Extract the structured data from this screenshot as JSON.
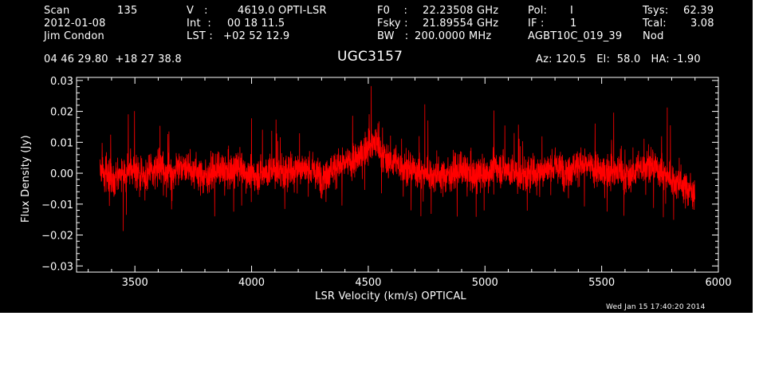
{
  "header": {
    "col1": {
      "scan_label": "Scan",
      "scan_value": "135",
      "date": "2012-01-08",
      "observer": "Jim Condon"
    },
    "col2": {
      "v_label": "V   :",
      "v_value": "4619.0 OPTI-LSR",
      "int_label": "Int  :",
      "int_value": "00 18 11.5",
      "lst_label": "LST :",
      "lst_value": "+02 52 12.9"
    },
    "col3": {
      "f0_label": "F0    :",
      "f0_value": "22.23508 GHz",
      "fsky_label": "Fsky :",
      "fsky_value": "21.89554 GHz",
      "bw_label": "BW   :",
      "bw_value": "200.0000 MHz"
    },
    "col4": {
      "pol_label": "Pol:",
      "pol_value": "I",
      "if_label": "IF :",
      "if_value": "1",
      "project": "AGBT10C_019_39"
    },
    "col5": {
      "tsys_label": "Tsys:",
      "tsys_value": "62.39",
      "tcal_label": "Tcal:",
      "tcal_value": "3.08",
      "mode": "Nod"
    },
    "coords": "04 46 29.80  +18 27 38.8",
    "source": "UGC3157",
    "pointing": "Az: 120.5   El:  58.0   HA: -1.90",
    "timestamp": "Wed Jan 15 17:40:20 2014"
  },
  "colors": {
    "background": "#000000",
    "axes": "#ffffff",
    "trace": "#ff0000"
  },
  "chart_data": {
    "type": "line",
    "xlabel": "LSR Velocity (km/s) OPTICAL",
    "ylabel": "Flux Density (Jy)",
    "xlim": [
      3250,
      6000
    ],
    "ylim": [
      -0.032,
      0.031
    ],
    "xticks": [
      3500,
      4000,
      4500,
      5000,
      5500,
      6000
    ],
    "yticks": [
      -0.03,
      -0.02,
      -0.01,
      0.0,
      0.01,
      0.02,
      0.03
    ],
    "ytick_labels": [
      "−0.03",
      "−0.02",
      "−0.01",
      "0.00",
      "0.01",
      "0.02",
      "0.03"
    ],
    "grid": false,
    "series": [
      {
        "style": "noisy spectrum trace",
        "x": [
          3350,
          3400,
          3450,
          3500,
          3550,
          3600,
          3650,
          3700,
          3750,
          3800,
          3850,
          3900,
          3950,
          4000,
          4050,
          4100,
          4150,
          4200,
          4250,
          4300,
          4350,
          4400,
          4450,
          4500,
          4525,
          4550,
          4575,
          4600,
          4650,
          4700,
          4750,
          4800,
          4850,
          4900,
          4950,
          5000,
          5050,
          5100,
          5150,
          5200,
          5250,
          5300,
          5350,
          5400,
          5450,
          5500,
          5550,
          5600,
          5650,
          5700,
          5750,
          5800,
          5850,
          5900
        ],
        "y": [
          0.002,
          -0.002,
          0.0,
          0.001,
          -0.001,
          0.002,
          0.0,
          0.003,
          0.001,
          -0.001,
          0.001,
          0.0,
          0.002,
          -0.001,
          0.0,
          0.001,
          0.0,
          0.002,
          0.001,
          -0.001,
          0.002,
          0.003,
          0.004,
          0.009,
          0.01,
          0.007,
          0.005,
          0.004,
          0.002,
          0.001,
          0.0,
          -0.001,
          0.0,
          0.001,
          -0.001,
          0.0,
          0.002,
          0.001,
          -0.001,
          0.0,
          0.001,
          0.002,
          0.001,
          0.003,
          0.002,
          0.0,
          0.001,
          -0.001,
          0.001,
          0.003,
          0.001,
          -0.002,
          -0.004,
          -0.006
        ]
      }
    ]
  }
}
